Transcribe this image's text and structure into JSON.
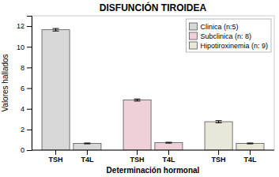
{
  "chart_data": {
    "type": "bar",
    "title": "DISFUNCIÓN TIROIDEA",
    "xlabel": "Determinación hormonal",
    "ylabel": "Valores hallados",
    "categories": [
      "TSH",
      "T4L"
    ],
    "series": [
      {
        "name": "Clinica (n:5)",
        "color": "#d8d8d8",
        "values": [
          11.65,
          0.65
        ],
        "errors": [
          0.12,
          0.04
        ]
      },
      {
        "name": "Subclinica (n: 8)",
        "color": "#f0d0d8",
        "values": [
          4.85,
          0.72
        ],
        "errors": [
          0.1,
          0.04
        ]
      },
      {
        "name": "Hipotiroxinemia (n: 9)",
        "color": "#e8e8d8",
        "values": [
          2.75,
          0.65
        ],
        "errors": [
          0.1,
          0.04
        ]
      }
    ],
    "ylim": [
      0,
      13
    ],
    "yticks": [
      0,
      2,
      4,
      6,
      8,
      10,
      12
    ],
    "grid": false,
    "legend": "upper-right"
  }
}
